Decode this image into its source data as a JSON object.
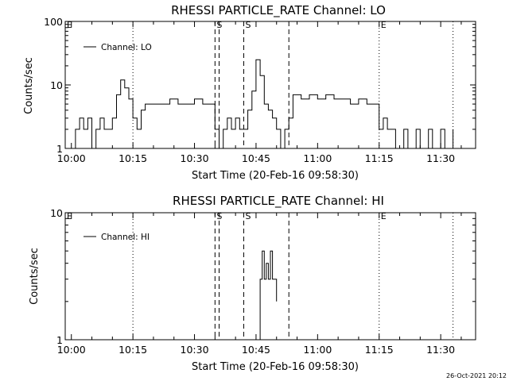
{
  "footer": {
    "timestamp": "26-Oct-2021 20:12"
  },
  "chart_data": [
    {
      "type": "line",
      "title": "RHESSI PARTICLE_RATE Channel: LO",
      "xlabel": "Start Time (20-Feb-16 09:58:30)",
      "ylabel": "Counts/sec",
      "yscale": "log",
      "ylim": [
        1,
        100
      ],
      "xlim": [
        "09:58:30",
        "11:38:30"
      ],
      "x_ticks": [
        "10:00",
        "10:15",
        "10:30",
        "10:45",
        "11:00",
        "11:15",
        "11:30"
      ],
      "y_ticks": [
        "1",
        "10",
        "100"
      ],
      "legend": {
        "position": "top-left",
        "entries": [
          "Channel: LO"
        ]
      },
      "grid": false,
      "markers": [
        {
          "label": "E",
          "time": "09:58:30",
          "style": "dotted"
        },
        {
          "label": "",
          "time": "10:15",
          "style": "dotted"
        },
        {
          "label": "S",
          "time": "10:35",
          "style": "dashed"
        },
        {
          "label": "",
          "time": "10:36",
          "style": "dashed"
        },
        {
          "label": "S",
          "time": "10:42",
          "style": "dashed"
        },
        {
          "label": "",
          "time": "10:53",
          "style": "dashed"
        },
        {
          "label": "E",
          "time": "11:15",
          "style": "dotted"
        },
        {
          "label": "",
          "time": "11:33",
          "style": "dotted"
        }
      ],
      "series": [
        {
          "name": "Channel: LO",
          "x": [
            "10:00",
            "10:01",
            "10:02",
            "10:03",
            "10:04",
            "10:05",
            "10:06",
            "10:07",
            "10:08",
            "10:09",
            "10:10",
            "10:11",
            "10:12",
            "10:13",
            "10:14",
            "10:15",
            "10:16",
            "10:17",
            "10:18",
            "10:20",
            "10:22",
            "10:24",
            "10:26",
            "10:28",
            "10:30",
            "10:32",
            "10:34",
            "10:35",
            "10:36",
            "10:37",
            "10:38",
            "10:39",
            "10:40",
            "10:41",
            "10:42",
            "10:43",
            "10:44",
            "10:45",
            "10:46",
            "10:47",
            "10:48",
            "10:49",
            "10:50",
            "10:51",
            "10:52",
            "10:53",
            "10:54",
            "10:56",
            "10:58",
            "11:00",
            "11:02",
            "11:04",
            "11:06",
            "11:08",
            "11:10",
            "11:12",
            "11:14",
            "11:15",
            "11:16",
            "11:17",
            "11:18",
            "11:19",
            "11:20",
            "11:21",
            "11:22",
            "11:23",
            "11:24",
            "11:25",
            "11:26",
            "11:27",
            "11:28",
            "11:29",
            "11:30",
            "11:31",
            "11:32",
            "11:33"
          ],
          "values": [
            1,
            2,
            3,
            2,
            3,
            1,
            2,
            3,
            2,
            2,
            3,
            7,
            12,
            9,
            6,
            3,
            2,
            4,
            5,
            5,
            5,
            6,
            5,
            5,
            6,
            5,
            5,
            2,
            1,
            2,
            3,
            2,
            3,
            2,
            2,
            4,
            8,
            25,
            14,
            5,
            4,
            3,
            2,
            1,
            2,
            3,
            7,
            6,
            7,
            6,
            7,
            6,
            6,
            5,
            6,
            5,
            5,
            2,
            3,
            2,
            2,
            1,
            1,
            2,
            1,
            1,
            2,
            1,
            1,
            2,
            1,
            1,
            2,
            1,
            1,
            2
          ]
        }
      ]
    },
    {
      "type": "line",
      "title": "RHESSI PARTICLE_RATE Channel: HI",
      "xlabel": "Start Time (20-Feb-16 09:58:30)",
      "ylabel": "Counts/sec",
      "yscale": "log",
      "ylim": [
        1,
        10
      ],
      "xlim": [
        "09:58:30",
        "11:38:30"
      ],
      "x_ticks": [
        "10:00",
        "10:15",
        "10:30",
        "10:45",
        "11:00",
        "11:15",
        "11:30"
      ],
      "y_ticks": [
        "1",
        "10"
      ],
      "legend": {
        "position": "top-left",
        "entries": [
          "Channel: HI"
        ]
      },
      "grid": false,
      "markers": [
        {
          "label": "E",
          "time": "09:58:30",
          "style": "dotted"
        },
        {
          "label": "",
          "time": "10:15",
          "style": "dotted"
        },
        {
          "label": "S",
          "time": "10:35",
          "style": "dashed"
        },
        {
          "label": "",
          "time": "10:36",
          "style": "dashed"
        },
        {
          "label": "S",
          "time": "10:42",
          "style": "dashed"
        },
        {
          "label": "",
          "time": "10:53",
          "style": "dashed"
        },
        {
          "label": "E",
          "time": "11:15",
          "style": "dotted"
        },
        {
          "label": "",
          "time": "11:33",
          "style": "dotted"
        }
      ],
      "series": [
        {
          "name": "Channel: HI",
          "x": [
            "10:45",
            "10:46",
            "10:46.5",
            "10:47",
            "10:47.5",
            "10:48",
            "10:48.5",
            "10:49",
            "10:49.5",
            "10:50"
          ],
          "values": [
            1,
            3,
            5,
            3,
            4,
            3,
            5,
            3,
            3,
            2
          ]
        }
      ]
    }
  ]
}
